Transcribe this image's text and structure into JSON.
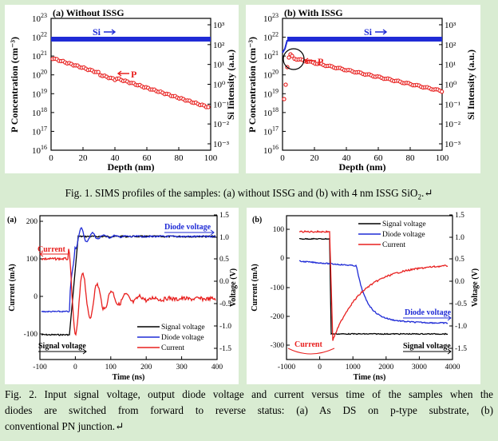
{
  "fig1": {
    "caption": "Fig. 1. SIMS profiles of the samples: (a) without ISSG and (b) with 4 nm ISSG SiO",
    "caption_sub": "2",
    "caption_end": ".↵",
    "panel_a": {
      "title": "(a) Without ISSG",
      "ylabel_left": "P Concentration (cm⁻³)",
      "ylabel_right": "Si Intensity (a.u.)",
      "xlabel": "Depth (nm)",
      "si_label": "Si",
      "p_label": "P",
      "xticks": [
        "0",
        "20",
        "40",
        "60",
        "80",
        "100"
      ],
      "yticks_left_exp": [
        "23",
        "22",
        "21",
        "20",
        "19",
        "18",
        "17",
        "16"
      ],
      "yticks_right": [
        "10³",
        "10²",
        "10¹",
        "10⁰",
        "10⁻¹",
        "10⁻²",
        "10⁻³"
      ]
    },
    "panel_b": {
      "title": "(b) With ISSG",
      "ylabel_left": "P Concentration (cm⁻³)",
      "ylabel_right": "Si Intensity (a.u.)",
      "xlabel": "Depth (nm)",
      "si_label": "Si",
      "p_label": "P",
      "xticks": [
        "0",
        "20",
        "40",
        "60",
        "80",
        "100"
      ],
      "yticks_left_exp": [
        "23",
        "22",
        "21",
        "20",
        "19",
        "18",
        "17",
        "16"
      ],
      "yticks_right": [
        "10³",
        "10²",
        "10¹",
        "10⁰",
        "10⁻¹",
        "10⁻²",
        "10⁻³"
      ]
    }
  },
  "fig2": {
    "caption_line1": "Fig. 2. Input signal voltage, output diode voltage and current versus time of the samples when the",
    "caption_line2": "diodes are switched from forward to reverse status: (a) As DS on p-type substrate, (b)",
    "caption_line3": "conventional PN junction.↵",
    "panel_a": {
      "label": "(a)",
      "ylabel_left": "Current (mA)",
      "ylabel_right": "Voltage (V)",
      "xlabel": "Time (ns)",
      "xticks": [
        "-100",
        "0",
        "100",
        "200",
        "300",
        "400"
      ],
      "yticks_left": [
        "200",
        "100",
        "0",
        "-100"
      ],
      "yticks_right": [
        "1.5",
        "1.0",
        "0.5",
        "0.0",
        "-0.5",
        "-1.0",
        "-1.5"
      ],
      "annot_diode": "Diode voltage",
      "annot_current": "Current",
      "annot_signal": "Signal voltage",
      "legend": [
        "Signal voltage",
        "Diode voltage",
        "Current"
      ]
    },
    "panel_b": {
      "label": "(b)",
      "ylabel_left": "Current (mA)",
      "ylabel_right": "Voltage (V)",
      "xlabel": "Time (ns)",
      "xticks": [
        "-1000",
        "0",
        "1000",
        "2000",
        "3000",
        "4000"
      ],
      "yticks_left": [
        "100",
        "0",
        "-100",
        "-200",
        "-300"
      ],
      "yticks_right": [
        "1.5",
        "1.0",
        "0.5",
        "0.0",
        "-0.5",
        "-1.0",
        "-1.5"
      ],
      "annot_diode": "Diode voltage",
      "annot_current": "Current",
      "annot_signal": "Signal voltage",
      "legend": [
        "Signal voltage",
        "Diode voltage",
        "Current"
      ]
    }
  },
  "colors": {
    "si": "#1f2bd6",
    "p": "#e8201f",
    "signal": "#000000",
    "diode": "#1f2bd6",
    "current": "#e8201f"
  }
}
